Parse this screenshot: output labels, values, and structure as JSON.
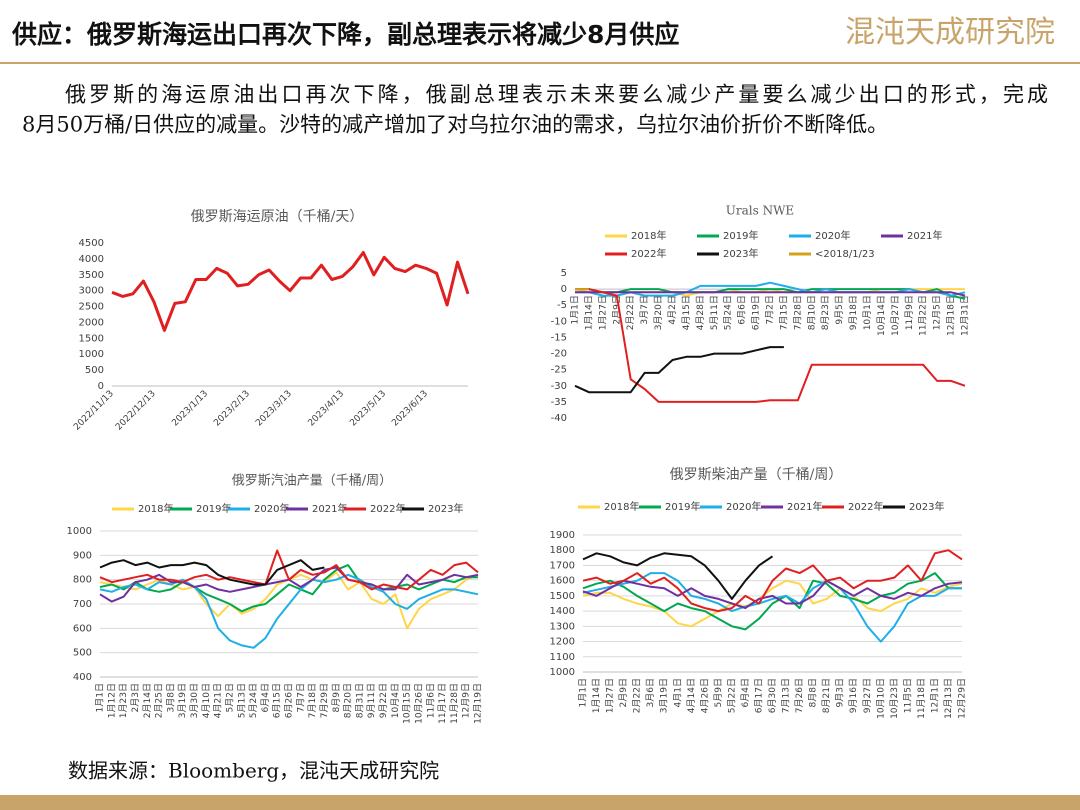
{
  "header": {
    "title": "供应：俄罗斯海运出口再次下降，副总理表示将减少8月供应",
    "logo": "混沌天成研究院"
  },
  "body": [
    "俄罗斯的海运原油出口再次下降，俄副总理表示未来要么减少产量要么减少出口的形式，完成",
    "8月50万桶/日供应的减量。沙特的减产增加了对乌拉尔油的需求，乌拉尔油价折价不断降低。"
  ],
  "source": "数据来源：Bloomberg，混沌天成研究院",
  "chart_data": [
    {
      "type": "line",
      "title": "俄罗斯海运原油（千桶/天）",
      "categories": [
        "2022/11/13",
        null,
        null,
        null,
        "2022/12/13",
        null,
        null,
        null,
        null,
        "2023/1/13",
        null,
        null,
        null,
        "2023/2/13",
        null,
        null,
        null,
        "2023/3/13",
        null,
        null,
        null,
        null,
        "2023/4/13",
        null,
        null,
        null,
        "2023/5/13",
        null,
        null,
        null,
        "2023/6/13",
        null,
        null,
        null,
        null
      ],
      "values": [
        2950,
        2820,
        2900,
        3300,
        2650,
        1750,
        2600,
        2650,
        3350,
        3350,
        3700,
        3550,
        3150,
        3200,
        3500,
        3650,
        3300,
        3000,
        3400,
        3400,
        3800,
        3350,
        3450,
        3750,
        4200,
        3500,
        4050,
        3700,
        3600,
        3800,
        3700,
        3550,
        2550,
        3900,
        2900
      ],
      "color": "#e02020",
      "ylim": [
        0,
        4500
      ],
      "yticks": [
        0,
        500,
        1000,
        1500,
        2000,
        2500,
        3000,
        3500,
        4000,
        4500
      ],
      "grid": false
    },
    {
      "type": "line",
      "title": "Urals NWE",
      "categories": [
        "1月1日",
        "1月14日",
        "1月27日",
        "2月9日",
        "2月22日",
        "3月7日",
        "3月20日",
        "4月2日",
        "4月15日",
        "4月28日",
        "5月11日",
        "5月24日",
        "6月6日",
        "6月19日",
        "7月2日",
        "7月15日",
        "7月28日",
        "8月10日",
        "8月23日",
        "9月5日",
        "9月18日",
        "10月1日",
        "10月14日",
        "10月27日",
        "11月9日",
        "11月22日",
        "12月5日",
        "12月18日",
        "12月31日"
      ],
      "series": [
        {
          "name": "2018年",
          "color": "#ffd54a",
          "values": [
            0,
            -1,
            -1,
            -2,
            -1,
            -1,
            -1,
            -1,
            -2,
            -1,
            -1,
            0,
            -1,
            -1,
            0,
            -1,
            -1,
            -1,
            -1,
            -1,
            -1,
            -1,
            0,
            0,
            0,
            0,
            0,
            0,
            0
          ]
        },
        {
          "name": "2019年",
          "color": "#00a850",
          "values": [
            0,
            0,
            -1,
            -1,
            0,
            0,
            0,
            -1,
            -1,
            -1,
            -1,
            0,
            0,
            0,
            0,
            0,
            -1,
            0,
            0,
            0,
            0,
            0,
            0,
            0,
            0,
            -1,
            0,
            -2,
            -3
          ]
        },
        {
          "name": "2020年",
          "color": "#1eaee8",
          "values": [
            -1,
            -1,
            -2,
            -2,
            -1,
            -2,
            -2,
            -2,
            -1,
            1,
            1,
            1,
            1,
            1,
            2,
            1,
            0,
            -1,
            0,
            -1,
            -1,
            -1,
            -1,
            -1,
            0,
            -1,
            -1,
            -2,
            -1
          ]
        },
        {
          "name": "2021年",
          "color": "#7030a0",
          "values": [
            -1,
            -1,
            -1,
            -1,
            -1,
            -1,
            -1,
            -1,
            -1,
            -1,
            -1,
            -1,
            -1,
            -1,
            -1,
            -1,
            -1,
            -1,
            -1,
            -1,
            -1,
            -1,
            -1,
            -1,
            -1,
            -1,
            -1,
            -1,
            -2
          ]
        },
        {
          "name": "2022年",
          "color": "#e02020",
          "values": [
            0,
            0,
            -1,
            -2,
            -28,
            -31,
            -35,
            -35,
            -35,
            -35,
            -35,
            -35,
            -35,
            -35,
            -34.5,
            -34.5,
            -34.5,
            -23.5,
            -23.5,
            -23.5,
            -23.5,
            -23.5,
            -23.5,
            -23.5,
            -23.5,
            -23.5,
            -28.5,
            -28.5,
            -30
          ]
        },
        {
          "name": "2023年",
          "color": "#111111",
          "values": [
            -30,
            -32,
            -32,
            -32,
            -32,
            -26,
            -26,
            -22,
            -21,
            -21,
            -20,
            -20,
            -20,
            -19,
            -18,
            -18,
            null,
            null,
            null,
            null,
            null,
            null,
            null,
            null,
            null,
            null,
            null,
            null,
            null
          ]
        },
        {
          "name": "<2018/1/23",
          "color": "#d4a017",
          "values": [
            0,
            0,
            null,
            null,
            null,
            null,
            null,
            null,
            null,
            null,
            null,
            null,
            null,
            null,
            null,
            null,
            null,
            null,
            null,
            null,
            null,
            null,
            null,
            null,
            null,
            null,
            null,
            null,
            null
          ]
        }
      ],
      "ylim": [
        -40,
        5
      ],
      "yticks": [
        5,
        0,
        -5,
        -10,
        -15,
        -20,
        -25,
        -30,
        -35,
        -40
      ],
      "grid": false
    },
    {
      "type": "line",
      "title": "俄罗斯汽油产量（千桶/周）",
      "categories": [
        "1月1日",
        "1月12日",
        "1月23日",
        "2月3日",
        "2月14日",
        "2月25日",
        "3月8日",
        "3月19日",
        "3月30日",
        "4月10日",
        "4月21日",
        "5月2日",
        "5月13日",
        "5月24日",
        "6月4日",
        "6月15日",
        "6月26日",
        "7月7日",
        "7月18日",
        "7月29日",
        "8月9日",
        "8月20日",
        "8月31日",
        "9月11日",
        "9月22日",
        "10月4日",
        "10月15日",
        "10月26日",
        "11月6日",
        "11月17日",
        "11月28日",
        "12月9日",
        "12月19日"
      ],
      "series": [
        {
          "name": "2018年",
          "color": "#ffd54a",
          "values": [
            790,
            780,
            770,
            760,
            780,
            800,
            780,
            760,
            770,
            700,
            650,
            700,
            660,
            680,
            720,
            780,
            800,
            820,
            800,
            790,
            830,
            760,
            790,
            720,
            700,
            740,
            600,
            680,
            720,
            740,
            760,
            800,
            820
          ]
        },
        {
          "name": "2019年",
          "color": "#00a850",
          "values": [
            770,
            780,
            760,
            790,
            760,
            750,
            760,
            790,
            770,
            740,
            720,
            700,
            670,
            690,
            700,
            740,
            780,
            760,
            740,
            800,
            840,
            860,
            790,
            780,
            760,
            770,
            780,
            760,
            780,
            800,
            790,
            810,
            810
          ]
        },
        {
          "name": "2020年",
          "color": "#1eaee8",
          "values": [
            760,
            750,
            770,
            780,
            760,
            790,
            780,
            800,
            770,
            720,
            600,
            550,
            530,
            520,
            560,
            640,
            700,
            760,
            800,
            790,
            800,
            820,
            800,
            770,
            750,
            700,
            680,
            720,
            740,
            760,
            760,
            750,
            740
          ]
        },
        {
          "name": "2021年",
          "color": "#7030a0",
          "values": [
            740,
            710,
            730,
            790,
            800,
            820,
            790,
            790,
            770,
            780,
            760,
            750,
            760,
            770,
            780,
            790,
            800,
            770,
            800,
            840,
            850,
            800,
            790,
            780,
            760,
            760,
            820,
            780,
            790,
            800,
            820,
            810,
            820
          ]
        },
        {
          "name": "2022年",
          "color": "#e02020",
          "values": [
            810,
            790,
            800,
            810,
            820,
            800,
            800,
            790,
            810,
            820,
            800,
            810,
            800,
            790,
            780,
            920,
            800,
            840,
            820,
            830,
            860,
            800,
            790,
            760,
            780,
            770,
            760,
            800,
            840,
            820,
            860,
            870,
            830
          ]
        },
        {
          "name": "2023年",
          "color": "#111111",
          "values": [
            850,
            870,
            880,
            860,
            870,
            850,
            860,
            860,
            870,
            860,
            820,
            800,
            790,
            780,
            780,
            840,
            860,
            880,
            840,
            850,
            null,
            null,
            null,
            null,
            null,
            null,
            null,
            null,
            null,
            null,
            null,
            null,
            null
          ]
        }
      ],
      "ylim": [
        400,
        1000
      ],
      "yticks": [
        400,
        500,
        600,
        700,
        800,
        900,
        1000
      ],
      "grid": true
    },
    {
      "type": "line",
      "title": "俄罗斯柴油产量（千桶/周）",
      "categories": [
        "1月1日",
        "1月14日",
        "1月27日",
        "2月9日",
        "2月22日",
        "3月6日",
        "3月19日",
        "4月1日",
        "4月14日",
        "4月26日",
        "5月9日",
        "5月22日",
        "6月4日",
        "6月17日",
        "6月30日",
        "7月13日",
        "7月26日",
        "8月8日",
        "8月21日",
        "9月3日",
        "9月16日",
        "9月27日",
        "10月10日",
        "10月23日",
        "11月5日",
        "11月18日",
        "12月1日",
        "12月13日",
        "12月29日"
      ],
      "series": [
        {
          "name": "2018年",
          "color": "#ffd54a",
          "values": [
            1500,
            1520,
            1520,
            1480,
            1450,
            1430,
            1400,
            1320,
            1300,
            1350,
            1400,
            1450,
            1430,
            1480,
            1550,
            1600,
            1580,
            1450,
            1480,
            1550,
            1500,
            1420,
            1400,
            1450,
            1480,
            1550,
            1520,
            1560,
            1580
          ]
        },
        {
          "name": "2019年",
          "color": "#00a850",
          "values": [
            1550,
            1580,
            1600,
            1560,
            1500,
            1450,
            1400,
            1450,
            1420,
            1400,
            1350,
            1300,
            1280,
            1350,
            1450,
            1500,
            1420,
            1600,
            1580,
            1500,
            1480,
            1450,
            1500,
            1520,
            1580,
            1600,
            1650,
            1550,
            1550
          ]
        },
        {
          "name": "2020年",
          "color": "#1eaee8",
          "values": [
            1520,
            1540,
            1560,
            1580,
            1600,
            1650,
            1650,
            1600,
            1500,
            1480,
            1450,
            1400,
            1430,
            1450,
            1480,
            1500,
            1450,
            1550,
            1600,
            1550,
            1450,
            1300,
            1200,
            1300,
            1450,
            1500,
            1500,
            1550,
            1550
          ]
        },
        {
          "name": "2021年",
          "color": "#7030a0",
          "values": [
            1530,
            1500,
            1550,
            1600,
            1580,
            1560,
            1550,
            1500,
            1550,
            1500,
            1480,
            1450,
            1420,
            1480,
            1500,
            1450,
            1450,
            1500,
            1600,
            1550,
            1500,
            1550,
            1500,
            1480,
            1520,
            1500,
            1550,
            1580,
            1590
          ]
        },
        {
          "name": "2022年",
          "color": "#e02020",
          "values": [
            1600,
            1620,
            1580,
            1600,
            1650,
            1580,
            1620,
            1550,
            1450,
            1420,
            1400,
            1420,
            1500,
            1450,
            1600,
            1680,
            1650,
            1700,
            1600,
            1620,
            1550,
            1600,
            1600,
            1620,
            1700,
            1600,
            1780,
            1800,
            1740
          ]
        },
        {
          "name": "2023年",
          "color": "#111111",
          "values": [
            1740,
            1780,
            1760,
            1720,
            1700,
            1750,
            1780,
            1770,
            1760,
            1700,
            1600,
            1480,
            1600,
            1700,
            1760,
            null,
            null,
            null,
            null,
            null,
            null,
            null,
            null,
            null,
            null,
            null,
            null,
            null,
            null
          ]
        }
      ],
      "ylim": [
        1000,
        1900
      ],
      "yticks": [
        1000,
        1100,
        1200,
        1300,
        1400,
        1500,
        1600,
        1700,
        1800,
        1900
      ],
      "grid": true
    }
  ]
}
